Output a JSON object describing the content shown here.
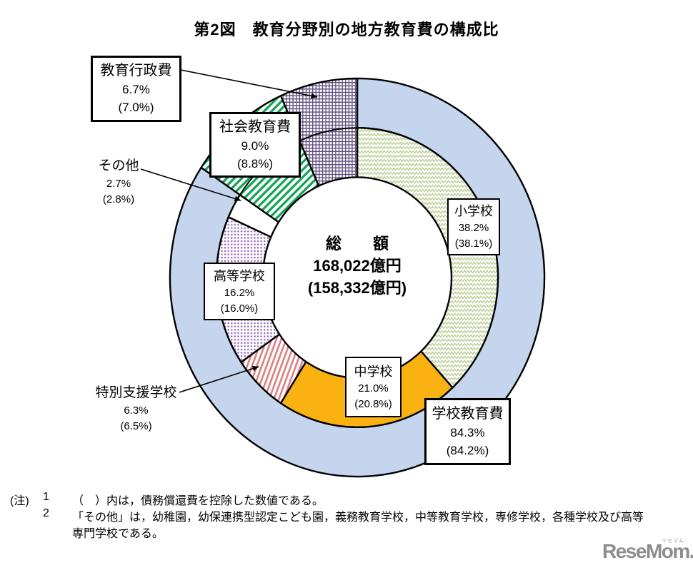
{
  "title": "第2図　教育分野別の地方教育費の構成比",
  "chart_data": {
    "type": "pie",
    "subtype": "two-level-donut",
    "title": "第2図　教育分野別の地方教育費の構成比",
    "units": "%",
    "note": "percentages in parentheses exclude debt redemption costs",
    "center": {
      "line1": "総　　額",
      "line2": "168,022億円",
      "line3": "(158,332億円)"
    },
    "outer_ring": [
      {
        "key": "school-education",
        "label": "学校教育費",
        "pct": 84.3,
        "pct_display": "84.3%",
        "pct_paren": "(84.2%)",
        "pattern": "solid",
        "color": "#c5d5ed"
      },
      {
        "key": "social-education",
        "label": "社会教育費",
        "pct": 9.0,
        "pct_display": "9.0%",
        "pct_paren": "(8.8%)",
        "pattern": "stripes45",
        "color": "#12a456"
      },
      {
        "key": "education-admin",
        "label": "教育行政費",
        "pct": 6.7,
        "pct_display": "6.7%",
        "pct_paren": "(7.0%)",
        "pattern": "grid",
        "color": "#5e4d7e"
      }
    ],
    "inner_ring": [
      {
        "key": "elementary-school",
        "label": "小学校",
        "pct": 38.2,
        "pct_display": "38.2%",
        "pct_paren": "(38.1%)",
        "pattern": "zigzag",
        "color": "#bccf97"
      },
      {
        "key": "junior-high-school",
        "label": "中学校",
        "pct": 21.0,
        "pct_display": "21.0%",
        "pct_paren": "(20.8%)",
        "pattern": "solid",
        "color": "#f9b211"
      },
      {
        "key": "special-needs-school",
        "label": "特別支援学校",
        "pct": 6.3,
        "pct_display": "6.3%",
        "pct_paren": "(6.5%)",
        "pattern": "stripes20",
        "color": "#db8287"
      },
      {
        "key": "high-school",
        "label": "高等学校",
        "pct": 16.2,
        "pct_display": "16.2%",
        "pct_paren": "(16.0%)",
        "pattern": "dots",
        "color": "#9c6fc2"
      },
      {
        "key": "other",
        "label": "その他",
        "pct": 2.7,
        "pct_display": "2.7%",
        "pct_paren": "(2.8%)",
        "pattern": "plain",
        "color": "#ffffff"
      }
    ],
    "outline_color": "#000000"
  },
  "notes": {
    "prefix": "(注)",
    "items": [
      {
        "num": "1",
        "lines": [
          "（　）内は，債務償還費を控除した数値である。"
        ]
      },
      {
        "num": "2",
        "lines": [
          "「その他」は，幼稚園，幼保連携型認定こども園，義務教育学校，中等教育学校，専修学校，各種学校及び高等",
          "専門学校である。"
        ]
      }
    ]
  },
  "logo": {
    "text": "ReseMom.",
    "ruby": "リセマム"
  }
}
